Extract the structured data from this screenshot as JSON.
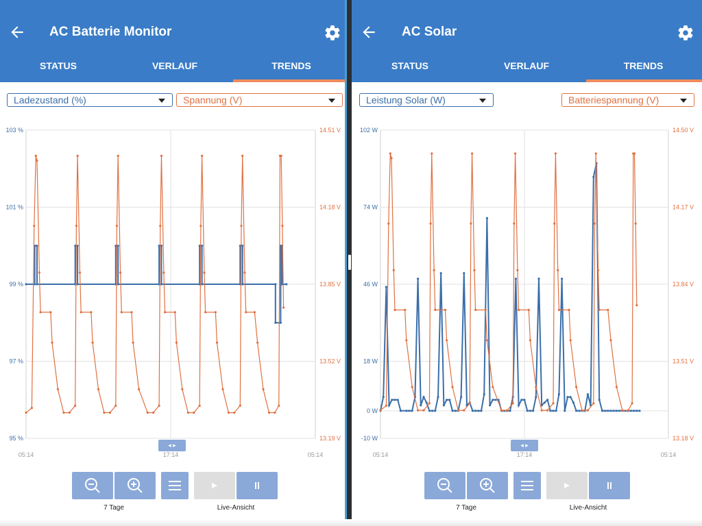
{
  "colors": {
    "appbar": "#3a7cc7",
    "tab_accent": "#f08a5d",
    "series_blue": "#3a6ea8",
    "series_orange": "#e07040",
    "control_button": "#8aa9d8"
  },
  "left": {
    "title": "AC Batterie Monitor",
    "tabs": [
      "STATUS",
      "VERLAUF",
      "TRENDS"
    ],
    "active_tab": "TRENDS",
    "dropdown_left": "Ladezustand (%)",
    "dropdown_right": "Spannung (V)",
    "zoom_label": "7 Tage",
    "live_label": "Live-Ansicht",
    "scroll_handle": "◂ ▸"
  },
  "right": {
    "title": "AC Solar",
    "tabs": [
      "STATUS",
      "VERLAUF",
      "TRENDS"
    ],
    "active_tab": "TRENDS",
    "dropdown_left": "Leistung Solar (W)",
    "dropdown_right": "Batteriespannung (V)",
    "zoom_label": "7 Tage",
    "live_label": "Live-Ansicht",
    "scroll_handle": "◂ ▸"
  },
  "chart_data": [
    {
      "type": "line",
      "left_axis": {
        "ticks": [
          "103 %",
          "101 %",
          "99 %",
          "97 %",
          "95 %"
        ],
        "range": [
          95,
          103
        ]
      },
      "right_axis": {
        "ticks": [
          "14.51 V",
          "14.18 V",
          "13.85 V",
          "13.52 V",
          "13.19 V"
        ],
        "range": [
          13.19,
          14.51
        ]
      },
      "x_ticks": [
        "05:14",
        "17:14",
        "05:14"
      ],
      "grid": true,
      "series": [
        {
          "axis": "left",
          "color": "#3a6ea8",
          "x": [
            0,
            0.03,
            0.03,
            0.038,
            0.038,
            0.17,
            0.17,
            0.178,
            0.178,
            0.31,
            0.31,
            0.318,
            0.318,
            0.46,
            0.46,
            0.468,
            0.468,
            0.6,
            0.6,
            0.608,
            0.608,
            0.74,
            0.74,
            0.748,
            0.748,
            0.862,
            0.862,
            0.88,
            0.88,
            0.885,
            0.885,
            0.9
          ],
          "values": [
            99,
            99,
            100,
            100,
            99,
            99,
            100,
            100,
            99,
            99,
            100,
            100,
            99,
            99,
            100,
            100,
            99,
            99,
            100,
            100,
            99,
            99,
            100,
            100,
            99,
            99,
            98,
            98,
            100,
            100,
            99,
            99
          ]
        },
        {
          "axis": "right",
          "color": "#e07040",
          "x": [
            0,
            0.02,
            0.028,
            0.034,
            0.038,
            0.046,
            0.05,
            0.085,
            0.09,
            0.11,
            0.13,
            0.15,
            0.17,
            0.174,
            0.178,
            0.186,
            0.19,
            0.225,
            0.23,
            0.25,
            0.27,
            0.29,
            0.31,
            0.314,
            0.318,
            0.326,
            0.33,
            0.365,
            0.37,
            0.39,
            0.42,
            0.44,
            0.46,
            0.464,
            0.468,
            0.476,
            0.48,
            0.515,
            0.52,
            0.54,
            0.56,
            0.58,
            0.6,
            0.604,
            0.608,
            0.616,
            0.62,
            0.655,
            0.66,
            0.68,
            0.7,
            0.72,
            0.74,
            0.744,
            0.748,
            0.756,
            0.76,
            0.79,
            0.8,
            0.82,
            0.84,
            0.86,
            0.874,
            0.878,
            0.882,
            0.886,
            0.89
          ],
          "values": [
            13.3,
            13.32,
            14.1,
            14.4,
            14.38,
            13.9,
            13.73,
            13.73,
            13.6,
            13.4,
            13.3,
            13.3,
            13.33,
            14.1,
            14.4,
            13.9,
            13.73,
            13.73,
            13.6,
            13.4,
            13.3,
            13.3,
            13.33,
            14.1,
            14.4,
            13.9,
            13.73,
            13.73,
            13.6,
            13.4,
            13.3,
            13.3,
            13.33,
            14.1,
            14.4,
            13.9,
            13.73,
            13.73,
            13.6,
            13.4,
            13.3,
            13.3,
            13.33,
            14.1,
            14.4,
            13.9,
            13.73,
            13.73,
            13.6,
            13.4,
            13.3,
            13.3,
            13.33,
            14.1,
            14.4,
            13.9,
            13.73,
            13.73,
            13.6,
            13.4,
            13.3,
            13.3,
            13.33,
            14.4,
            14.4,
            14.1,
            13.75
          ]
        }
      ]
    },
    {
      "type": "line",
      "left_axis": {
        "ticks": [
          "102 W",
          "74 W",
          "46 W",
          "18 W",
          "0 W",
          "-10 W"
        ],
        "range": [
          -10,
          102
        ]
      },
      "right_axis": {
        "ticks": [
          "14.50 V",
          "14.17 V",
          "13.84 V",
          "13.51 V",
          "13.18 V"
        ],
        "range": [
          13.18,
          14.5
        ]
      },
      "x_ticks": [
        "05:14",
        "17:14",
        "05:14"
      ],
      "grid": true,
      "series": [
        {
          "axis": "left",
          "color": "#3a6ea8",
          "x": [
            0,
            0.01,
            0.02,
            0.03,
            0.04,
            0.05,
            0.06,
            0.07,
            0.09,
            0.1,
            0.11,
            0.12,
            0.13,
            0.14,
            0.15,
            0.16,
            0.17,
            0.18,
            0.19,
            0.2,
            0.21,
            0.22,
            0.23,
            0.24,
            0.25,
            0.26,
            0.27,
            0.28,
            0.29,
            0.3,
            0.31,
            0.32,
            0.33,
            0.34,
            0.35,
            0.36,
            0.37,
            0.38,
            0.39,
            0.4,
            0.41,
            0.42,
            0.43,
            0.44,
            0.45,
            0.46,
            0.47,
            0.48,
            0.49,
            0.5,
            0.51,
            0.52,
            0.53,
            0.54,
            0.55,
            0.56,
            0.57,
            0.58,
            0.59,
            0.6,
            0.61,
            0.62,
            0.63,
            0.64,
            0.65,
            0.66,
            0.67,
            0.68,
            0.69,
            0.7,
            0.71,
            0.72,
            0.73,
            0.74,
            0.75,
            0.76,
            0.77,
            0.78,
            0.79,
            0.8,
            0.81,
            0.82,
            0.83,
            0.84,
            0.85,
            0.86,
            0.87,
            0.88,
            0.89,
            0.9
          ],
          "values": [
            0,
            5,
            45,
            2,
            4,
            4,
            4,
            0,
            0,
            0,
            0,
            5,
            48,
            2,
            5,
            3,
            0,
            0,
            0,
            5,
            50,
            2,
            4,
            4,
            0,
            0,
            0,
            5,
            50,
            2,
            3,
            0,
            0,
            0,
            0,
            6,
            70,
            2,
            4,
            4,
            4,
            0,
            0,
            0,
            0,
            5,
            48,
            2,
            4,
            4,
            0,
            0,
            0,
            5,
            48,
            2,
            3,
            4,
            0,
            0,
            0,
            6,
            48,
            0,
            5,
            5,
            3,
            0,
            0,
            0,
            0,
            6,
            2,
            85,
            90,
            4,
            0,
            0,
            0,
            0,
            0,
            0,
            0,
            0,
            0,
            0,
            0,
            0,
            0,
            0
          ]
        },
        {
          "axis": "right",
          "color": "#e07040",
          "x": [
            0,
            0.02,
            0.028,
            0.034,
            0.038,
            0.046,
            0.05,
            0.085,
            0.09,
            0.11,
            0.13,
            0.15,
            0.17,
            0.174,
            0.178,
            0.186,
            0.19,
            0.225,
            0.23,
            0.25,
            0.27,
            0.29,
            0.31,
            0.314,
            0.318,
            0.326,
            0.33,
            0.365,
            0.37,
            0.39,
            0.42,
            0.44,
            0.46,
            0.464,
            0.468,
            0.476,
            0.48,
            0.515,
            0.52,
            0.54,
            0.56,
            0.58,
            0.6,
            0.604,
            0.608,
            0.616,
            0.62,
            0.655,
            0.66,
            0.68,
            0.7,
            0.72,
            0.74,
            0.744,
            0.748,
            0.756,
            0.76,
            0.79,
            0.8,
            0.82,
            0.84,
            0.86,
            0.874,
            0.878,
            0.882,
            0.886,
            0.89
          ],
          "values": [
            13.3,
            13.32,
            14.1,
            14.4,
            14.38,
            13.9,
            13.73,
            13.73,
            13.6,
            13.4,
            13.3,
            13.3,
            13.33,
            14.1,
            14.4,
            13.9,
            13.73,
            13.73,
            13.6,
            13.4,
            13.3,
            13.3,
            13.33,
            14.1,
            14.4,
            13.9,
            13.73,
            13.73,
            13.6,
            13.4,
            13.3,
            13.3,
            13.33,
            14.1,
            14.4,
            13.9,
            13.73,
            13.73,
            13.6,
            13.4,
            13.3,
            13.3,
            13.33,
            14.1,
            14.4,
            13.9,
            13.73,
            13.73,
            13.6,
            13.4,
            13.3,
            13.3,
            13.33,
            14.1,
            14.4,
            13.9,
            13.73,
            13.73,
            13.6,
            13.4,
            13.3,
            13.3,
            13.33,
            14.4,
            14.4,
            14.1,
            13.75
          ]
        }
      ]
    }
  ]
}
